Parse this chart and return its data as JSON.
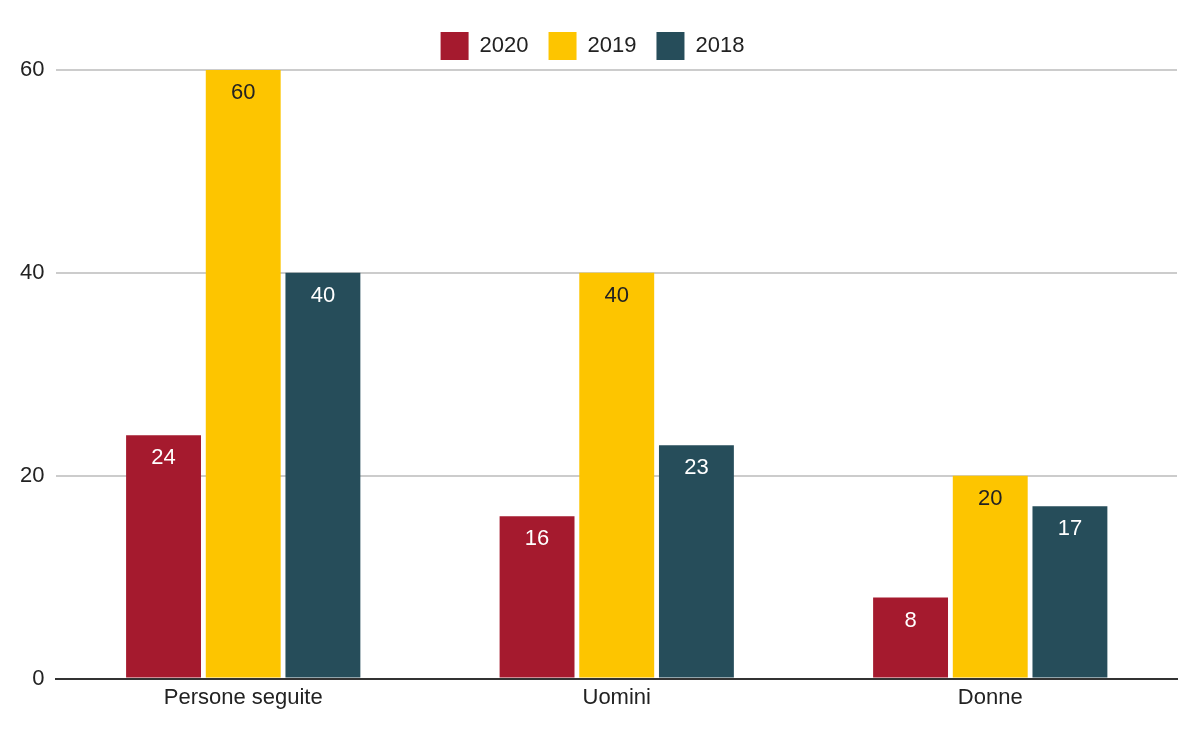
{
  "chart_data": {
    "type": "bar",
    "categories": [
      "Persone seguite",
      "Uomini",
      "Donne"
    ],
    "series": [
      {
        "name": "2020",
        "color": "#a51a2e",
        "values": [
          24,
          16,
          8
        ]
      },
      {
        "name": "2019",
        "color": "#fdc500",
        "values": [
          60,
          40,
          20
        ]
      },
      {
        "name": "2018",
        "color": "#264d5a",
        "values": [
          40,
          23,
          17
        ]
      }
    ],
    "ylim": [
      0,
      60
    ],
    "yticks": [
      0,
      20,
      40,
      60
    ],
    "grid": "y",
    "legend": "top",
    "data_labels": true
  }
}
